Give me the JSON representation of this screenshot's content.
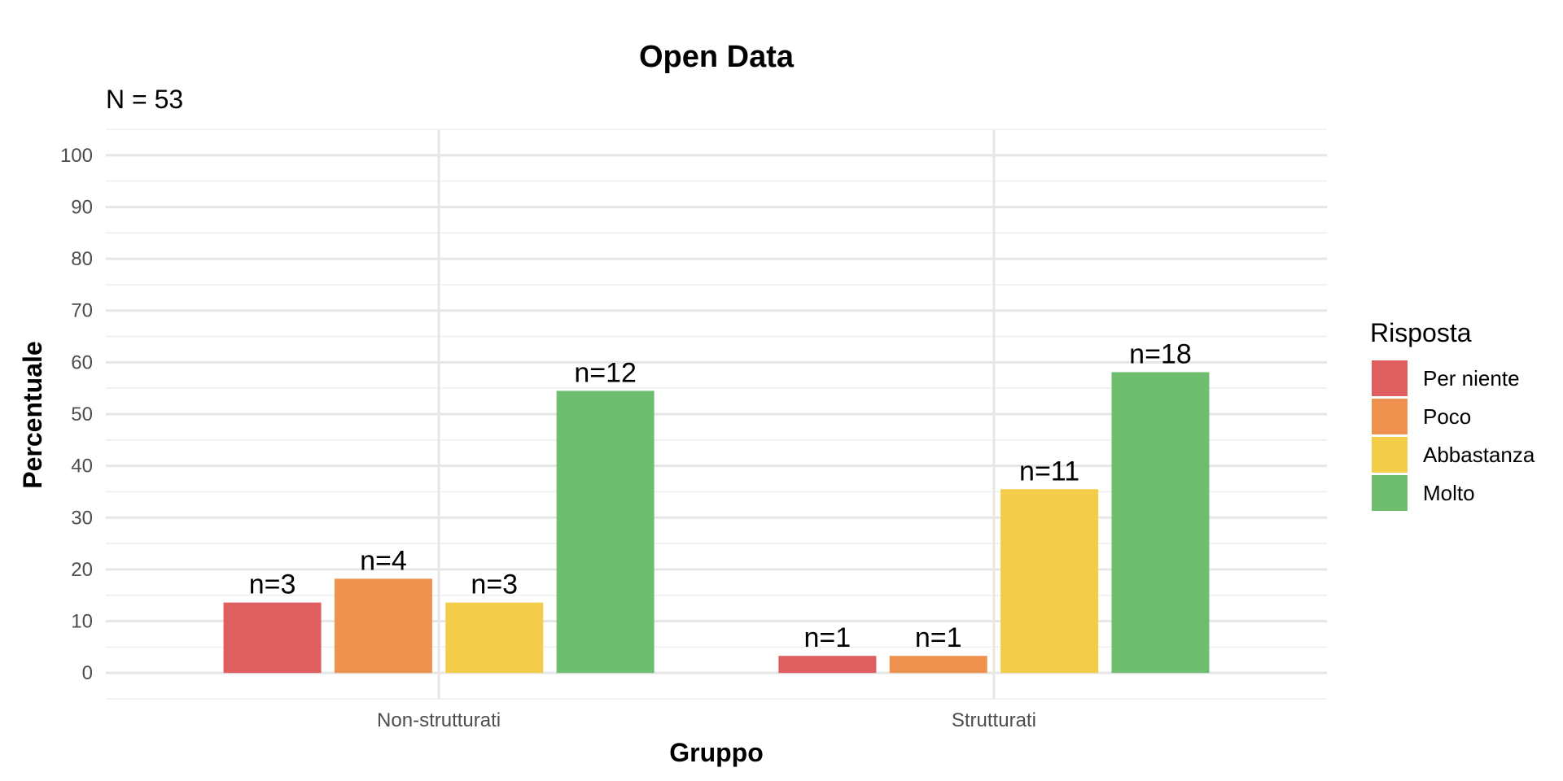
{
  "chart_data": {
    "type": "bar",
    "title": "Open Data",
    "subtitle": "N = 53",
    "xlabel": "Gruppo",
    "ylabel": "Percentuale",
    "ylim": [
      -5,
      105
    ],
    "yticks": [
      0,
      10,
      20,
      30,
      40,
      50,
      60,
      70,
      80,
      90,
      100
    ],
    "categories": [
      "Non-strutturati",
      "Strutturati"
    ],
    "legend": {
      "title": "Risposta",
      "position": "right"
    },
    "series": [
      {
        "name": "Per niente",
        "color": "#DF5F60",
        "values": [
          13.6,
          3.3
        ],
        "labels": [
          "n=3",
          "n=1"
        ]
      },
      {
        "name": "Poco",
        "color": "#F0924F",
        "values": [
          18.2,
          3.3
        ],
        "labels": [
          "n=4",
          "n=1"
        ]
      },
      {
        "name": "Abbastanza",
        "color": "#F3CD4A",
        "values": [
          13.6,
          35.5
        ],
        "labels": [
          "n=3",
          "n=11"
        ]
      },
      {
        "name": "Molto",
        "color": "#6FBE70",
        "values": [
          54.5,
          58.1
        ],
        "labels": [
          "n=12",
          "n=18"
        ]
      }
    ],
    "grid": true
  }
}
